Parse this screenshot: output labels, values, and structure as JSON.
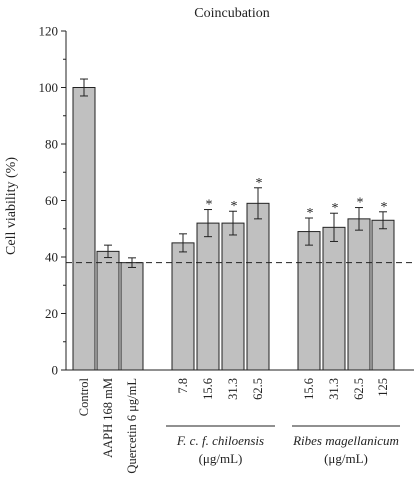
{
  "chart_data": {
    "type": "bar",
    "title": "Coincubation",
    "ylabel": "Cell viability (%)",
    "xlabel": "",
    "ylim": [
      0,
      120
    ],
    "yticks": [
      0,
      20,
      40,
      60,
      80,
      100,
      120
    ],
    "grid": false,
    "legend": "none",
    "reference_line": {
      "value": 38,
      "style": "dashed"
    },
    "bar_color": "#c0c0c0",
    "bars": [
      {
        "category": "Control",
        "value": 100,
        "error": 3,
        "significant": false
      },
      {
        "category": "AAPH 168 mM",
        "value": 42,
        "error": 2.2,
        "significant": false
      },
      {
        "category": "Quercetin 6 μg/mL",
        "value": 38,
        "error": 1.7,
        "significant": false
      },
      {
        "category": "7.8",
        "value": 45,
        "error": 3.2,
        "significant": false
      },
      {
        "category": "15.6",
        "value": 52,
        "error": 4.8,
        "significant": true
      },
      {
        "category": "31.3",
        "value": 52,
        "error": 4.2,
        "significant": true
      },
      {
        "category": "62.5",
        "value": 59,
        "error": 5.5,
        "significant": true
      },
      {
        "category": "15.6",
        "value": 49,
        "error": 4.8,
        "significant": true
      },
      {
        "category": "31.3",
        "value": 50.5,
        "error": 5.0,
        "significant": true
      },
      {
        "category": "62.5",
        "value": 53.5,
        "error": 4.0,
        "significant": true
      },
      {
        "category": "125",
        "value": 53,
        "error": 3.0,
        "significant": true
      }
    ],
    "star_symbol": "*",
    "groups": [
      {
        "label_line1": "F. c. f. chiloensis",
        "label_line2": "(μg/mL)",
        "bar_indices": [
          3,
          4,
          5,
          6
        ]
      },
      {
        "label_line1": "Ribes magellanicum",
        "label_line2": "(μg/mL)",
        "bar_indices": [
          7,
          8,
          9,
          10
        ]
      }
    ]
  }
}
